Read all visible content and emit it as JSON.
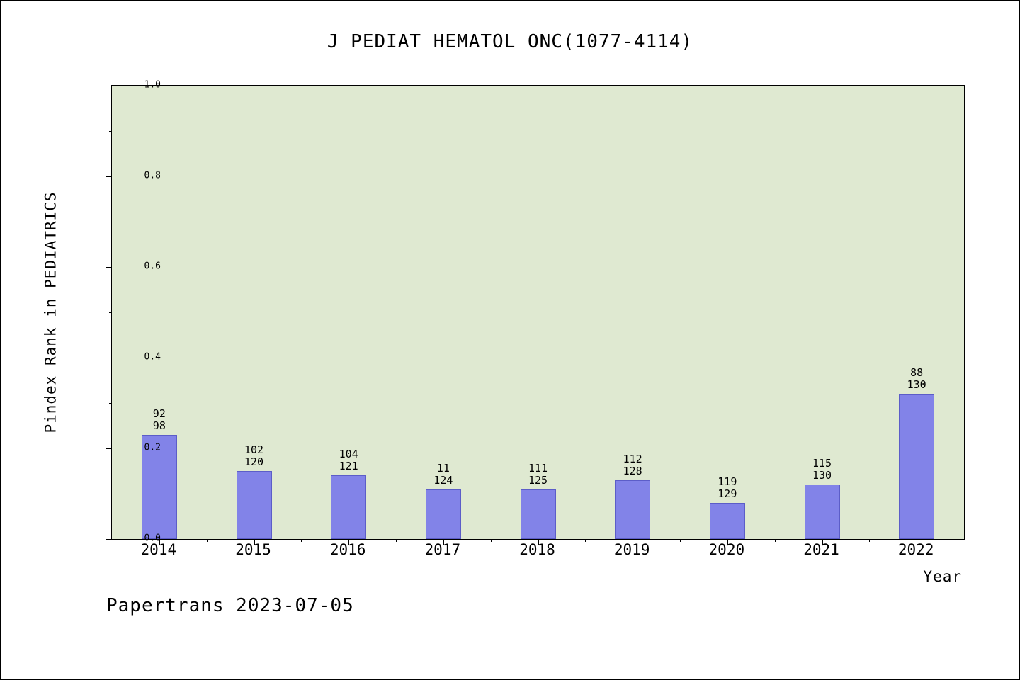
{
  "title": "J PEDIAT HEMATOL ONC(1077-4114)",
  "footer": "Papertrans 2023-07-05",
  "chart_data": {
    "type": "bar",
    "title": "J PEDIAT HEMATOL ONC(1077-4114)",
    "xlabel": "Year",
    "ylabel": "Pindex Rank in PEDIATRICS",
    "ylim": [
      0.0,
      1.0
    ],
    "yticks": [
      0.0,
      0.2,
      0.4,
      0.6,
      0.8,
      1.0
    ],
    "grid": false,
    "legend": "none",
    "categories": [
      "2014",
      "2015",
      "2016",
      "2017",
      "2018",
      "2019",
      "2020",
      "2021",
      "2022"
    ],
    "values": [
      0.23,
      0.15,
      0.14,
      0.11,
      0.11,
      0.13,
      0.08,
      0.12,
      0.32
    ],
    "bar_top_labels": [
      "92",
      "102",
      "104",
      "11",
      "111",
      "112",
      "119",
      "115",
      "88"
    ],
    "bar_bottom_labels": [
      "98",
      "120",
      "121",
      "124",
      "125",
      "128",
      "129",
      "130",
      "130"
    ],
    "colors": {
      "bar_fill": "#8283e8",
      "bar_edge": "#5c5dc8",
      "plot_bg": "#dfe9d1",
      "page_bg": "#ffffff",
      "axis": "#000000",
      "text": "#000000"
    }
  }
}
